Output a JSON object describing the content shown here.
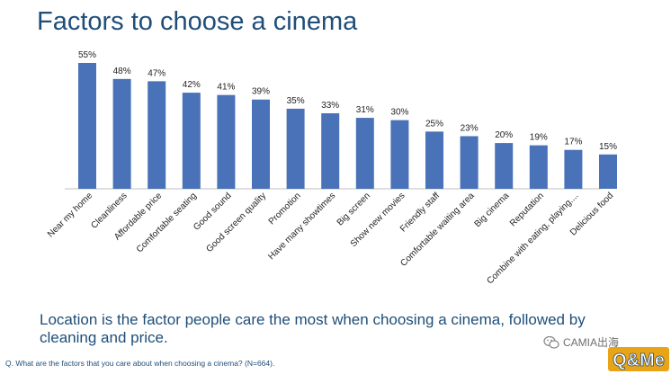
{
  "title": "Factors to choose a cinema",
  "caption": "Location is the factor people care the most when choosing a cinema, followed by cleaning and price.",
  "footnote": "Q. What are the factors that you care about when choosing a cinema? (N=664).",
  "watermark": {
    "text": "CAMIA出海",
    "icon": "wechat-icon"
  },
  "logo": {
    "text": "Q&Me",
    "icon": "qme-logo"
  },
  "colors": {
    "bar": "#4a72b8",
    "title": "#1f4e79",
    "label": "#222222"
  },
  "chart_data": {
    "type": "bar",
    "title": "Factors to choose a cinema",
    "xlabel": "",
    "ylabel": "",
    "ylim": [
      0,
      60
    ],
    "grid": false,
    "legend": "none",
    "categories": [
      "Near my home",
      "Cleanliness",
      "Affordable price",
      "Comfortable seating",
      "Good sound",
      "Good screen quality",
      "Promotion",
      "Have many showtimes",
      "Big screen",
      "Show new movies",
      "Friendly staff",
      "Comfortable waiting area",
      "Big cinema",
      "Reputation",
      "Combine with eating, playing....",
      "Delicious food"
    ],
    "values": [
      55,
      48,
      47,
      42,
      41,
      39,
      35,
      33,
      31,
      30,
      25,
      23,
      20,
      19,
      17,
      15
    ],
    "value_labels": [
      "55%",
      "48%",
      "47%",
      "42%",
      "41%",
      "39%",
      "35%",
      "33%",
      "31%",
      "30%",
      "25%",
      "23%",
      "20%",
      "19%",
      "17%",
      "15%"
    ]
  }
}
